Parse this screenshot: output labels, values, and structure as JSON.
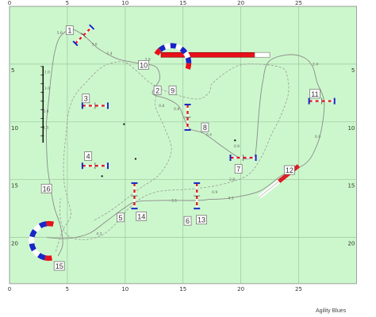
{
  "brand": "Agility Blues",
  "field": {
    "background": "#ccf7cc",
    "grid_color": "#9cc49c",
    "width_m": 30,
    "height_m": 24
  },
  "axis": {
    "x_ticks": [
      {
        "v": 0,
        "label": "0"
      },
      {
        "v": 5,
        "label": "5"
      },
      {
        "v": 10,
        "label": "10"
      },
      {
        "v": 15,
        "label": "15"
      },
      {
        "v": 20,
        "label": "20"
      },
      {
        "v": 25,
        "label": "25"
      }
    ],
    "y_ticks": [
      {
        "v": 5,
        "label": "5"
      },
      {
        "v": 10,
        "label": "10"
      },
      {
        "v": 15,
        "label": "15"
      },
      {
        "v": 20,
        "label": "20"
      }
    ]
  },
  "colors": {
    "red": "#e8101a",
    "blue": "#1826c8",
    "path": "#8a8a8a",
    "handler": "#9a9a9a"
  },
  "obstacles": [
    {
      "id": "o1",
      "type": "jump",
      "x": 6.4,
      "y": 2.5,
      "angle": -45,
      "len": 2.0
    },
    {
      "id": "o3",
      "type": "jump",
      "x": 7.4,
      "y": 8.6,
      "angle": 0,
      "len": 2.2
    },
    {
      "id": "o4",
      "type": "jump",
      "x": 7.4,
      "y": 13.8,
      "angle": 0,
      "len": 2.2
    },
    {
      "id": "o8",
      "type": "jump",
      "x": 15.4,
      "y": 9.6,
      "angle": 90,
      "len": 2.2
    },
    {
      "id": "o7",
      "type": "jump",
      "x": 20.2,
      "y": 13.1,
      "angle": 0,
      "len": 2.2
    },
    {
      "id": "o11",
      "type": "jump",
      "x": 27.0,
      "y": 8.2,
      "angle": 0,
      "len": 2.2
    },
    {
      "id": "o14",
      "type": "jump",
      "x": 10.8,
      "y": 16.4,
      "angle": 90,
      "len": 2.2
    },
    {
      "id": "o13",
      "type": "jump",
      "x": 16.2,
      "y": 16.4,
      "angle": 90,
      "len": 2.2
    }
  ],
  "long_jump_bar": {
    "x": 2.9,
    "y1": 5.2,
    "y2": 11.8
  },
  "tunnels": [
    {
      "id": "o10",
      "cx": 14.0,
      "cy": 4.9,
      "r": 1.5,
      "start": 210,
      "end": 20
    },
    {
      "id": "o15",
      "cx": 3.4,
      "cy": 20.3,
      "r": 1.5,
      "start": 80,
      "end": 285
    }
  ],
  "dogwalk": {
    "x1": 13.1,
    "y1": 4.2,
    "x2": 22.5,
    "y2": 4.2
  },
  "seesaw": {
    "x1": 21.6,
    "y1": 16.5,
    "x2": 25.0,
    "y2": 13.8
  },
  "dots": [
    [
      9.9,
      10.2
    ],
    [
      10.9,
      13.2
    ],
    [
      8.0,
      14.7
    ],
    [
      19.5,
      11.6
    ]
  ],
  "numbers": [
    {
      "label": "1",
      "x": 5.2,
      "y": 2.1
    },
    {
      "label": "3",
      "x": 6.6,
      "y": 8.0
    },
    {
      "label": "4",
      "x": 6.8,
      "y": 13.0
    },
    {
      "label": "2",
      "x": 12.8,
      "y": 7.3
    },
    {
      "label": "9",
      "x": 14.1,
      "y": 7.3
    },
    {
      "label": "10",
      "x": 11.6,
      "y": 5.1
    },
    {
      "label": "8",
      "x": 16.9,
      "y": 10.5
    },
    {
      "label": "7",
      "x": 19.8,
      "y": 14.1
    },
    {
      "label": "11",
      "x": 26.4,
      "y": 7.6
    },
    {
      "label": "12",
      "x": 24.2,
      "y": 14.2
    },
    {
      "label": "5",
      "x": 9.6,
      "y": 18.3
    },
    {
      "label": "14",
      "x": 11.4,
      "y": 18.2
    },
    {
      "label": "6",
      "x": 15.4,
      "y": 18.6
    },
    {
      "label": "13",
      "x": 16.6,
      "y": 18.5
    },
    {
      "label": "16",
      "x": 3.2,
      "y": 15.8
    },
    {
      "label": "15",
      "x": 4.3,
      "y": 22.5
    }
  ],
  "dog_path": [
    [
      4.2,
      21.6
    ],
    [
      4.6,
      20.6
    ],
    [
      4.4,
      19.0
    ],
    [
      3.9,
      17.5
    ],
    [
      3.6,
      16.0
    ],
    [
      3.3,
      14.0
    ],
    [
      3.2,
      12.0
    ],
    [
      3.2,
      10.0
    ],
    [
      3.4,
      8.0
    ],
    [
      3.6,
      6.0
    ],
    [
      3.9,
      4.0
    ],
    [
      4.4,
      2.6
    ],
    [
      5.4,
      2.0
    ],
    [
      6.5,
      2.6
    ],
    [
      7.6,
      3.6
    ],
    [
      8.6,
      4.2
    ],
    [
      9.5,
      4.6
    ],
    [
      11.0,
      4.9
    ],
    [
      12.6,
      5.2
    ],
    [
      13.0,
      6.2
    ],
    [
      12.6,
      7.0
    ],
    [
      12.4,
      7.6
    ],
    [
      13.6,
      8.0
    ],
    [
      14.6,
      8.6
    ],
    [
      15.1,
      9.7
    ],
    [
      15.6,
      10.6
    ],
    [
      16.8,
      11.0
    ],
    [
      18.5,
      12.2
    ],
    [
      19.9,
      13.1
    ],
    [
      21.0,
      13.1
    ],
    [
      21.3,
      12.5
    ],
    [
      21.6,
      8.8
    ],
    [
      21.9,
      6.5
    ],
    [
      22.4,
      4.8
    ],
    [
      24.0,
      4.2
    ],
    [
      25.4,
      4.4
    ],
    [
      26.2,
      5.2
    ],
    [
      26.6,
      6.6
    ],
    [
      27.2,
      8.2
    ],
    [
      27.0,
      10.5
    ],
    [
      26.5,
      12.2
    ],
    [
      25.6,
      13.6
    ],
    [
      23.6,
      14.6
    ],
    [
      21.6,
      16.0
    ],
    [
      19.0,
      16.6
    ],
    [
      17.4,
      16.7
    ],
    [
      16.2,
      16.8
    ],
    [
      13.2,
      16.8
    ],
    [
      11.0,
      16.9
    ],
    [
      10.0,
      17.4
    ],
    [
      8.5,
      18.5
    ],
    [
      7.0,
      19.6
    ],
    [
      5.7,
      20.0
    ],
    [
      4.6,
      20.1
    ],
    [
      3.2,
      20.0
    ]
  ],
  "handler_path": [
    [
      4.0,
      21.2
    ],
    [
      4.6,
      19.4
    ],
    [
      5.3,
      18.1
    ],
    [
      5.0,
      16.6
    ],
    [
      4.7,
      15.0
    ],
    [
      4.7,
      13.0
    ],
    [
      4.9,
      11.0
    ],
    [
      5.1,
      9.2
    ],
    [
      5.6,
      7.8
    ],
    [
      6.6,
      6.6
    ],
    [
      8.1,
      5.2
    ],
    [
      9.8,
      4.8
    ],
    [
      11.0,
      5.6
    ],
    [
      12.0,
      6.5
    ],
    [
      13.2,
      7.2
    ],
    [
      14.3,
      7.6
    ],
    [
      15.3,
      7.9
    ],
    [
      16.5,
      8.0
    ],
    [
      17.3,
      7.4
    ],
    [
      17.6,
      6.6
    ],
    [
      19.6,
      5.2
    ],
    [
      21.5,
      5.0
    ],
    [
      23.5,
      5.3
    ],
    [
      24.0,
      6.0
    ],
    [
      24.1,
      7.6
    ],
    [
      23.4,
      9.6
    ],
    [
      22.6,
      11.2
    ],
    [
      21.8,
      13.0
    ],
    [
      20.6,
      14.6
    ],
    [
      18.4,
      15.4
    ],
    [
      15.8,
      15.8
    ],
    [
      13.0,
      16.0
    ],
    [
      11.4,
      16.6
    ],
    [
      10.2,
      17.6
    ],
    [
      9.2,
      18.8
    ],
    [
      8.0,
      19.8
    ],
    [
      6.4,
      20.2
    ],
    [
      5.0,
      19.8
    ],
    [
      4.4,
      18.4
    ],
    [
      4.4,
      16.6
    ]
  ],
  "handler_path_2": [
    [
      12.8,
      7.4
    ],
    [
      12.6,
      8.6
    ],
    [
      13.4,
      10.5
    ],
    [
      14.0,
      12.5
    ],
    [
      13.0,
      14.5
    ],
    [
      11.2,
      15.8
    ],
    [
      9.0,
      17.5
    ],
    [
      7.2,
      18.6
    ]
  ],
  "dist_labels": [
    {
      "t": "5.6",
      "x": 4.1,
      "y": 2.4
    },
    {
      "t": "3.6",
      "x": 7.1,
      "y": 3.4
    },
    {
      "t": "1.4",
      "x": 8.4,
      "y": 4.2
    },
    {
      "t": "1.0",
      "x": 3.0,
      "y": 5.8
    },
    {
      "t": "1.0",
      "x": 3.0,
      "y": 7.2
    },
    {
      "t": "0.8",
      "x": 2.9,
      "y": 9.2
    },
    {
      "t": "1.5",
      "x": 2.9,
      "y": 10.6
    },
    {
      "t": "0.4",
      "x": 17.0,
      "y": 11.2
    },
    {
      "t": "0.8",
      "x": 19.4,
      "y": 12.2
    },
    {
      "t": "2.4",
      "x": 26.2,
      "y": 5.1
    },
    {
      "t": "0.9",
      "x": 26.4,
      "y": 11.4
    },
    {
      "t": "2.8",
      "x": 19.0,
      "y": 15.1
    },
    {
      "t": "4.1",
      "x": 18.9,
      "y": 16.7
    },
    {
      "t": "3.1",
      "x": 14.0,
      "y": 16.9
    },
    {
      "t": "0.9",
      "x": 17.5,
      "y": 16.2
    },
    {
      "t": "4.3",
      "x": 7.5,
      "y": 19.8
    },
    {
      "t": "2.9",
      "x": 11.7,
      "y": 4.7
    },
    {
      "t": "0.8",
      "x": 12.9,
      "y": 8.7
    },
    {
      "t": "0.8",
      "x": 14.2,
      "y": 9.0
    }
  ]
}
